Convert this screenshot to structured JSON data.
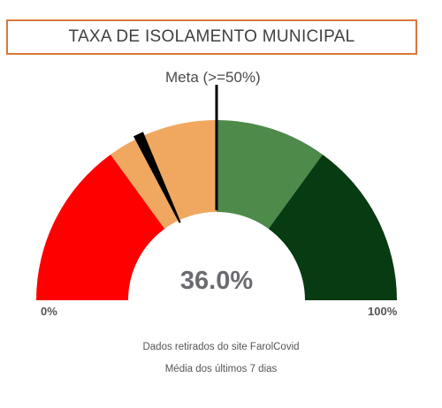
{
  "chart_data": {
    "type": "gauge",
    "title": "TAXA DE ISOLAMENTO MUNICIPAL",
    "value": 36.0,
    "value_label": "36.0%",
    "range": [
      0,
      100
    ],
    "min_label": "0%",
    "max_label": "100%",
    "target": 50,
    "target_label": "Meta (>=50%)",
    "bands": [
      {
        "from": 0,
        "to": 30,
        "color": "#ff0000"
      },
      {
        "from": 30,
        "to": 50,
        "color": "#f0a860"
      },
      {
        "from": 50,
        "to": 70,
        "color": "#4e8a4a"
      },
      {
        "from": 70,
        "to": 100,
        "color": "#073b11"
      }
    ]
  },
  "footnotes": [
    "Dados retirados do site FarolCovid",
    "Média dos últimos 7 dias"
  ]
}
